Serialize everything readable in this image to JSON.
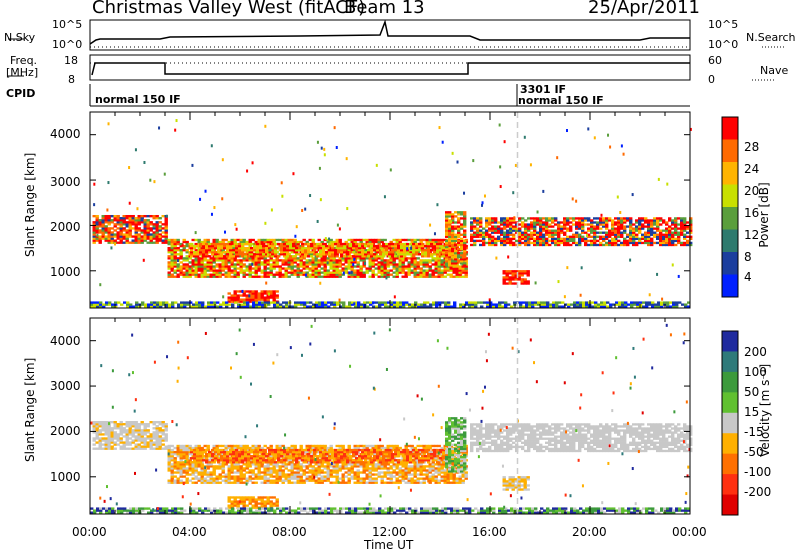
{
  "header": {
    "radar": "Christmas Valley West (fitACF)",
    "beam": "Beam 13",
    "date": "25/Apr/2011"
  },
  "strip": {
    "nsky_label": "N.Sky",
    "nsky_ticks": [
      "10^5",
      "10^0"
    ],
    "nsearch_label": "N.Search",
    "nsearch_ticks": [
      "10^5",
      "10^0"
    ],
    "freq_label": "Freq.",
    "freq_unit": "[MHz]",
    "freq_ticks": [
      "18",
      "8"
    ],
    "nave_label": "Nave",
    "nave_ticks": [
      "60",
      "0"
    ],
    "cpid_label": "CPID",
    "cpid_entries": [
      "normal 150 IF",
      "3301 IF",
      "normal 150 IF"
    ]
  },
  "chart_data": [
    {
      "type": "heatmap",
      "name": "power-panel",
      "ylabel": "Slant Range [km]",
      "yticks": [
        "4000",
        "3000",
        "2000",
        "1000"
      ],
      "ylim": [
        180,
        4500
      ],
      "xlim": [
        0,
        24
      ],
      "colorbar_label": "Power [dB]",
      "colorbar_ticks": [
        "28",
        "24",
        "20",
        "16",
        "12",
        "8",
        "4"
      ],
      "colorbar_colors": [
        "#ff0000",
        "#ff6a00",
        "#ffb400",
        "#c8e000",
        "#5a9e3c",
        "#2e7a6e",
        "#1b3e9e",
        "#0020ff"
      ]
    },
    {
      "type": "heatmap",
      "name": "velocity-panel",
      "ylabel": "Slant Range [km]",
      "yticks": [
        "4000",
        "3000",
        "2000",
        "1000"
      ],
      "ylim": [
        180,
        4500
      ],
      "xlim": [
        0,
        24
      ],
      "colorbar_label": "Velocity [m s⁻¹]",
      "colorbar_ticks": [
        "200",
        "100",
        "50",
        "15",
        "-15",
        "-50",
        "-100",
        "-200"
      ],
      "colorbar_colors": [
        "#1f2a9e",
        "#2f7a7a",
        "#3c9a3c",
        "#60c030",
        "#c8c8c8",
        "#ffb000",
        "#ff7000",
        "#ff3010",
        "#e00000"
      ]
    }
  ],
  "xaxis": {
    "ticks": [
      "00:00",
      "04:00",
      "08:00",
      "12:00",
      "16:00",
      "20:00",
      "00:00"
    ],
    "label": "Time UT"
  }
}
